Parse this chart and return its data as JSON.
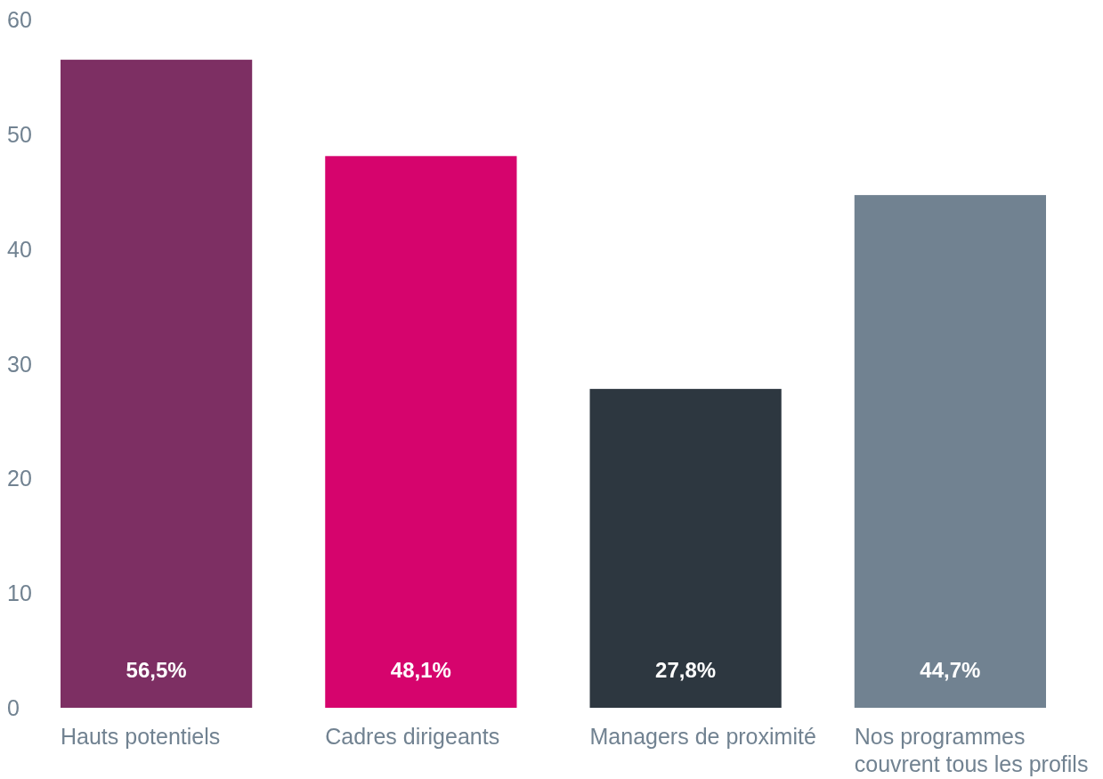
{
  "chart_data": {
    "type": "bar",
    "categories": [
      "Hauts potentiels",
      "Cadres dirigeants",
      "Managers de proximité",
      "Nos programmes couvrent tous les profils"
    ],
    "values": [
      56.5,
      48.1,
      27.8,
      44.7
    ],
    "colors": [
      "#7d2f63",
      "#d6046d",
      "#2d3740",
      "#718291"
    ],
    "value_labels": [
      "56,5%",
      "48,1%",
      "27,8%",
      "44,7%"
    ],
    "ylim": [
      0,
      60
    ],
    "yticks": [
      0,
      10,
      20,
      30,
      40,
      50,
      60
    ]
  }
}
